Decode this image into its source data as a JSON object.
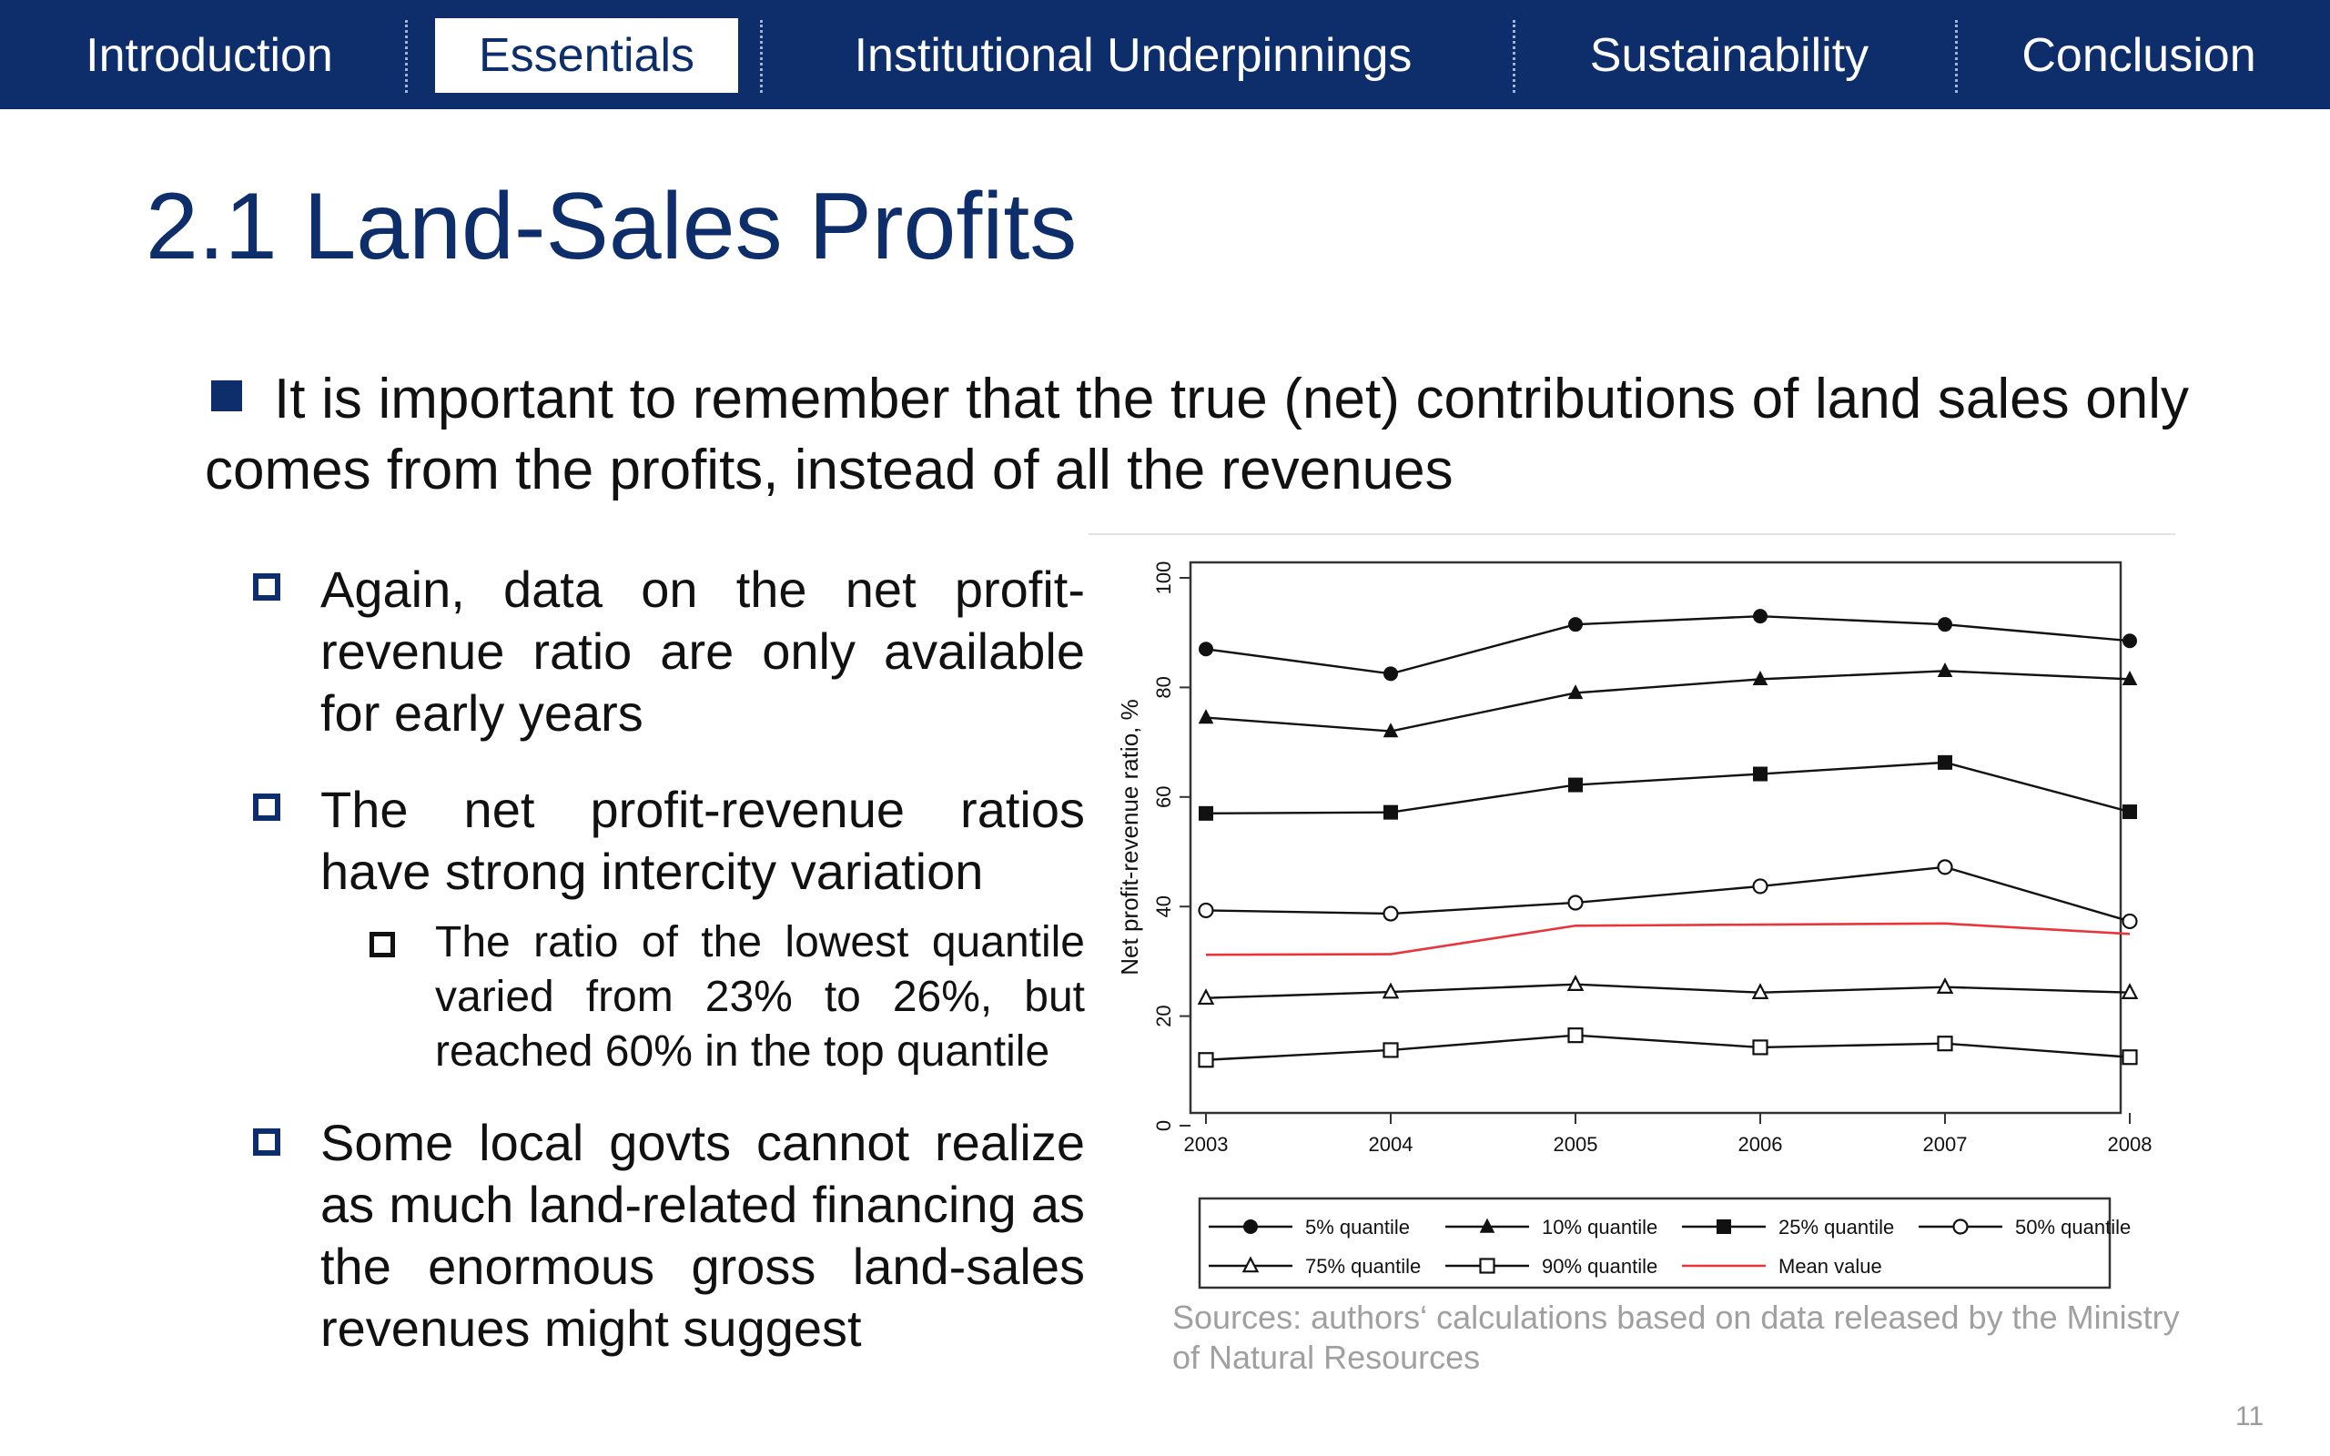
{
  "nav": {
    "tabs": [
      {
        "label": "Introduction"
      },
      {
        "label": "Essentials"
      },
      {
        "label": "Institutional Underpinnings"
      },
      {
        "label": "Sustainability"
      },
      {
        "label": "Conclusion"
      }
    ],
    "active_tab": "Essentials"
  },
  "slide": {
    "title": "2.1 Land-Sales Profits",
    "main_bullet": "It is important to remember that the true (net) contributions of land sales only comes from the profits, instead of all the revenues",
    "sub_bullets": [
      "Again, data on the net profit-revenue ratio are only available for early years",
      "The net profit-revenue ratios have strong intercity variation",
      "Some local govts cannot realize as much land-related financing as the enormous gross land-sales revenues might suggest"
    ],
    "sub_sub_bullet": "The ratio of the lowest quantile varied from 23% to 26%, but reached 60% in the top quantile",
    "sources": "Sources: authors‘ calculations based on data released by the Ministry of Natural Resources",
    "page_number": "11"
  },
  "colors": {
    "nav_bg": "#0d2e6b",
    "accent": "#0d2e6b",
    "mean_line": "#e8343a"
  },
  "chart_data": {
    "type": "line",
    "x": [
      2003,
      2004,
      2005,
      2006,
      2007,
      2008
    ],
    "ylabel": "Net profit-revenue ratio, %",
    "xlabel": "",
    "ylim": [
      0,
      100
    ],
    "yticks": [
      0,
      20,
      40,
      60,
      80,
      100
    ],
    "grid": false,
    "legend_position": "bottom",
    "series": [
      {
        "name": "5% quantile",
        "marker": "filled-circle",
        "color": "#111111",
        "values": [
          87,
          82.5,
          91.5,
          93,
          91.5,
          88.5
        ]
      },
      {
        "name": "10% quantile",
        "marker": "filled-triangle",
        "color": "#111111",
        "values": [
          74.5,
          72,
          79,
          81.5,
          83,
          81.5
        ]
      },
      {
        "name": "25% quantile",
        "marker": "filled-square",
        "color": "#111111",
        "values": [
          57,
          57.2,
          62.2,
          64.2,
          66.3,
          57.3
        ]
      },
      {
        "name": "50% quantile",
        "marker": "open-circle",
        "color": "#111111",
        "values": [
          39.3,
          38.7,
          40.7,
          43.7,
          47.2,
          37.3
        ]
      },
      {
        "name": "75% quantile",
        "marker": "open-triangle",
        "color": "#111111",
        "values": [
          23.3,
          24.4,
          25.8,
          24.3,
          25.3,
          24.3
        ]
      },
      {
        "name": "90% quantile",
        "marker": "open-square",
        "color": "#111111",
        "values": [
          12,
          13.8,
          16.5,
          14.3,
          15,
          12.5
        ]
      },
      {
        "name": "Mean value",
        "marker": "none",
        "color": "#e8343a",
        "values": [
          31.2,
          31.3,
          36.5,
          36.7,
          36.9,
          35
        ]
      }
    ]
  }
}
